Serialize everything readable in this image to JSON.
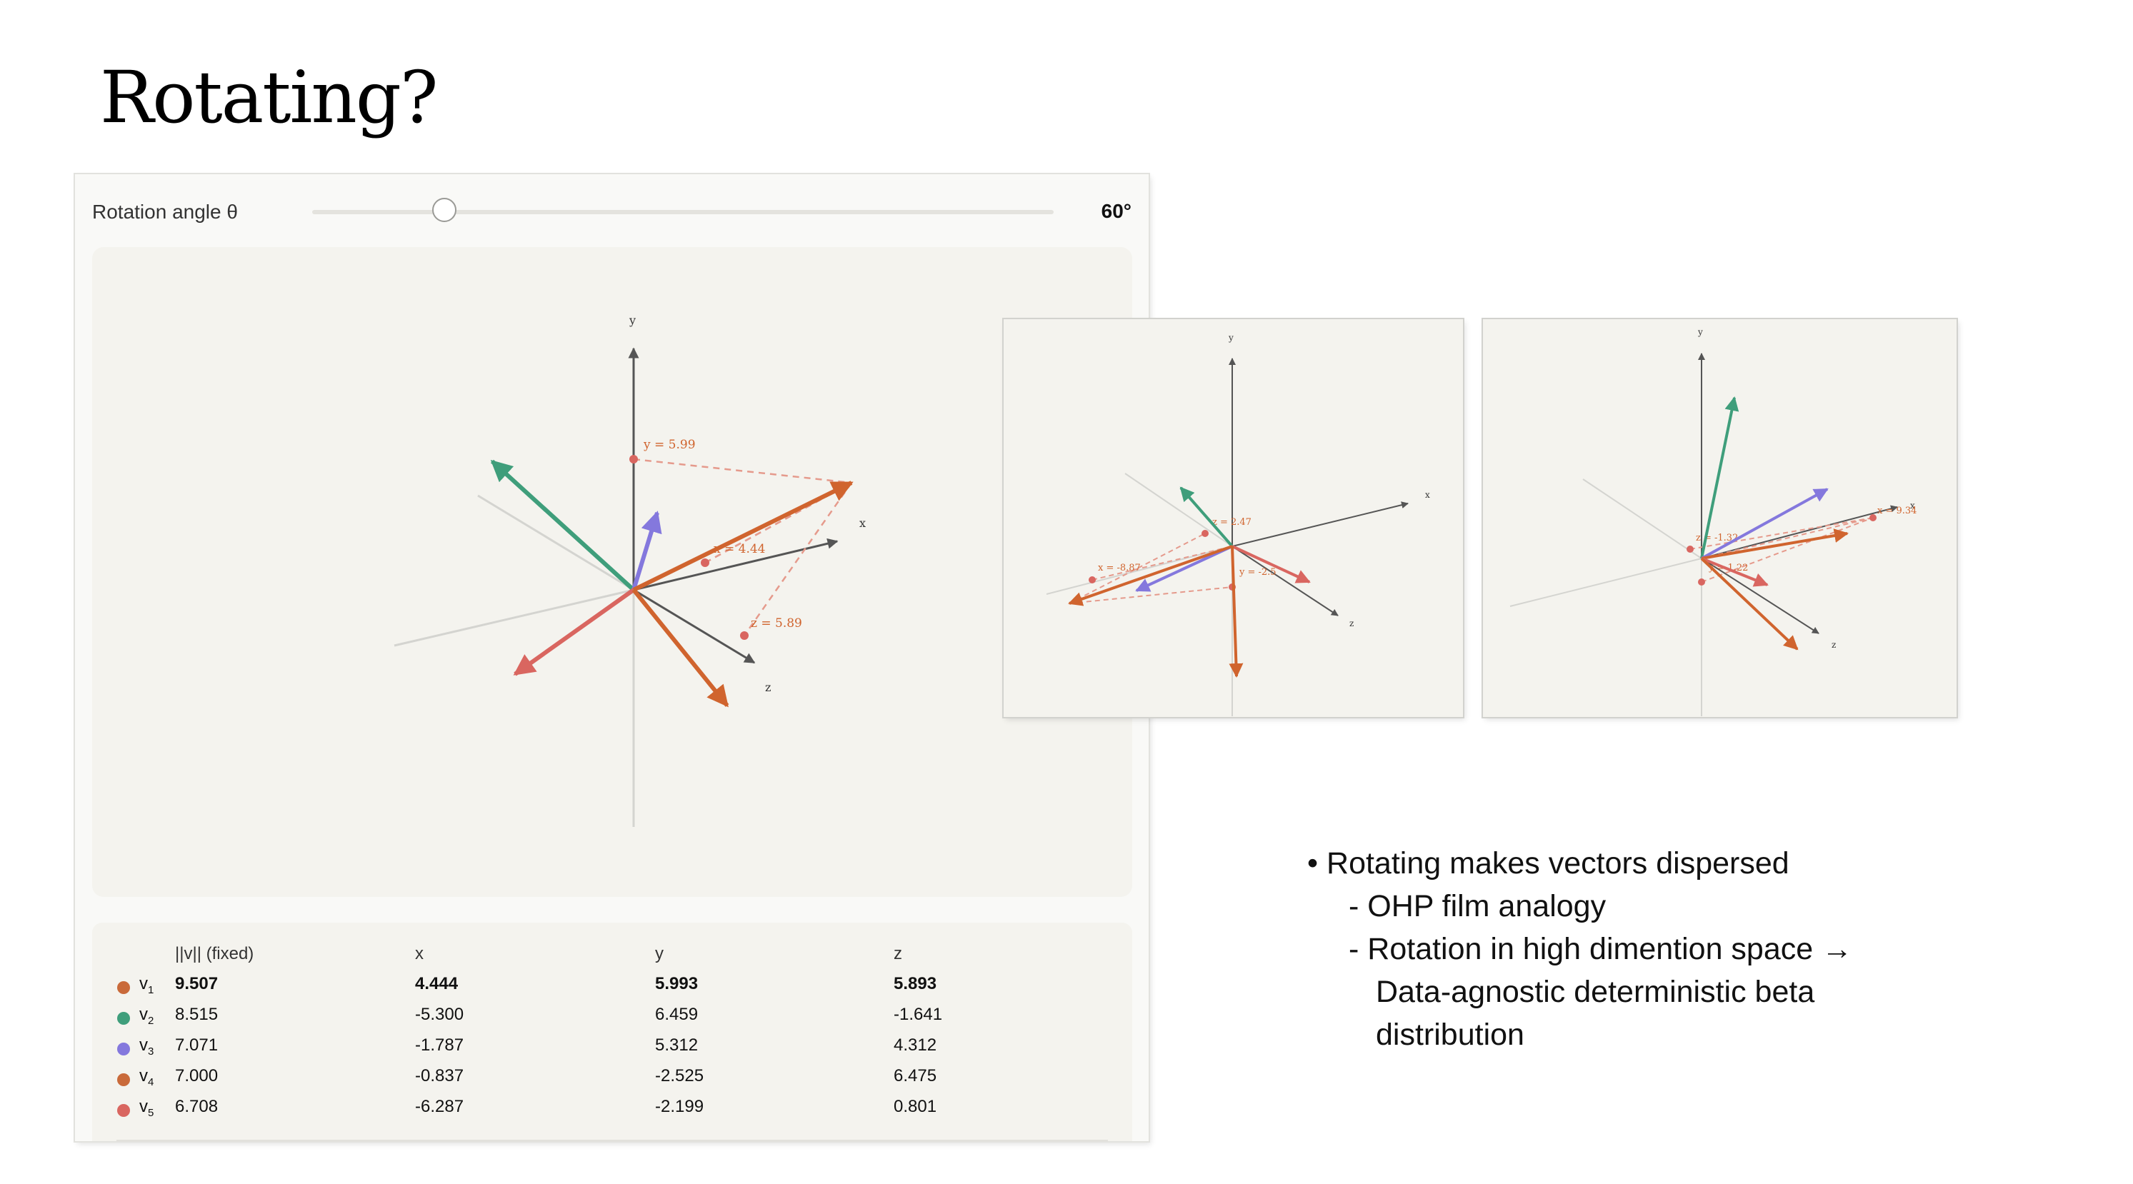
{
  "slide": {
    "title": "Rotating?"
  },
  "control": {
    "label": "Rotation angle θ",
    "value_label": "60°",
    "angle_deg": 60
  },
  "axes": {
    "x": "x",
    "y": "y",
    "z": "z"
  },
  "projections": {
    "y": "y = 5.99",
    "x": "x = 4.44",
    "z": "z = 5.89"
  },
  "table": {
    "headers": {
      "norm": "||v|| (fixed)",
      "x": "x",
      "y": "y",
      "z": "z"
    },
    "rows": [
      {
        "name": "v",
        "sub": "1",
        "color": "#c96a3a",
        "norm": "9.507",
        "x": "4.444",
        "y": "5.993",
        "z": "5.893"
      },
      {
        "name": "v",
        "sub": "2",
        "color": "#3f9e7b",
        "norm": "8.515",
        "x": "-5.300",
        "y": "6.459",
        "z": "-1.641"
      },
      {
        "name": "v",
        "sub": "3",
        "color": "#8478dd",
        "norm": "7.071",
        "x": "-1.787",
        "y": "5.312",
        "z": "4.312"
      },
      {
        "name": "v",
        "sub": "4",
        "color": "#c96a3a",
        "norm": "7.000",
        "x": "-0.837",
        "y": "-2.525",
        "z": "6.475"
      },
      {
        "name": "v",
        "sub": "5",
        "color": "#d96660",
        "norm": "6.708",
        "x": "-6.287",
        "y": "-2.199",
        "z": "0.801"
      }
    ]
  },
  "snapshot_a": {
    "axes": {
      "x": "x",
      "y": "y",
      "z": "z"
    },
    "labels": {
      "z": "z = 2.47",
      "x": "x = -8.87",
      "y": "y = -2.5"
    }
  },
  "snapshot_b": {
    "axes": {
      "x": "x",
      "y": "y",
      "z": "z"
    },
    "labels": {
      "x": "x = 9.34",
      "z": "z = -1.32",
      "y": "y = 1.22"
    }
  },
  "bullets": {
    "main": "Rotating makes vectors dispersed",
    "sub1": "OHP film analogy",
    "sub2a": "Rotation in high dimention space →",
    "sub2b": "Data-agnostic deterministic beta",
    "sub2c": "distribution"
  },
  "colors": {
    "axis": "#555555",
    "ghost_axis": "#d4d4d0",
    "v1": "#d0642e",
    "v2": "#3f9e7b",
    "v3": "#8478dd",
    "v4": "#d0642e",
    "v5": "#d96660",
    "projection": "#e59a8c"
  }
}
